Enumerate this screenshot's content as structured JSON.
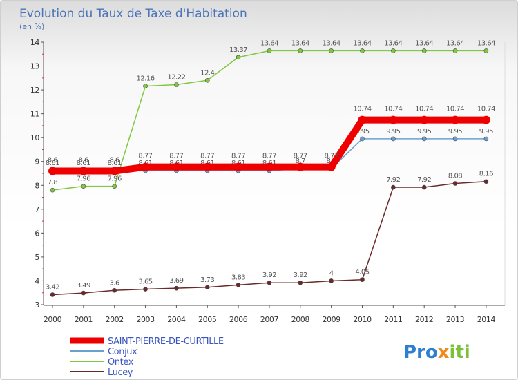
{
  "chart_data": {
    "type": "line",
    "title": "Evolution du Taux de Taxe d'Habitation",
    "subtitle": "(en %)",
    "x": [
      "2000",
      "2001",
      "2002",
      "2003",
      "2004",
      "2005",
      "2006",
      "2007",
      "2008",
      "2009",
      "2010",
      "2011",
      "2012",
      "2013",
      "2014"
    ],
    "ylim": [
      3,
      14
    ],
    "yticks": [
      3,
      4,
      5,
      6,
      7,
      8,
      9,
      10,
      11,
      12,
      13,
      14
    ],
    "grid": false,
    "legend_position": "bottom-left",
    "series": [
      {
        "name": "SAINT-PIERRE-DE-CURTILLE",
        "color": "#ee0000",
        "labels": [
          "8.6",
          "8.6",
          "8.6",
          "8.77",
          "8.77",
          "8.77",
          "8.77",
          "8.77",
          "8.77",
          "8.77",
          "10.74",
          "10.74",
          "10.74",
          "10.74",
          "10.74"
        ],
        "values": [
          8.6,
          8.6,
          8.6,
          8.77,
          8.77,
          8.77,
          8.77,
          8.77,
          8.77,
          8.77,
          10.74,
          10.74,
          10.74,
          10.74,
          10.74
        ]
      },
      {
        "name": "Conjux",
        "color": "#6aa0d0",
        "labels": [
          "8.61",
          "8.61",
          "8.61",
          "8.61",
          "8.61",
          "8.61",
          "8.61",
          "8.61",
          "8.7",
          "8.7",
          "9.95",
          "9.95",
          "9.95",
          "9.95",
          "9.95"
        ],
        "values": [
          8.61,
          8.61,
          8.61,
          8.61,
          8.61,
          8.61,
          8.61,
          8.61,
          8.7,
          8.7,
          9.95,
          9.95,
          9.95,
          9.95,
          9.95
        ]
      },
      {
        "name": "Ontex",
        "color": "#80c840",
        "labels": [
          "7.8",
          "7.96",
          "7.96",
          "12.16",
          "12.22",
          "12.4",
          "13.37",
          "13.64",
          "13.64",
          "13.64",
          "13.64",
          "13.64",
          "13.64",
          "13.64",
          "13.64"
        ],
        "values": [
          7.8,
          7.96,
          7.96,
          12.16,
          12.22,
          12.4,
          13.37,
          13.64,
          13.64,
          13.64,
          13.64,
          13.64,
          13.64,
          13.64,
          13.64
        ]
      },
      {
        "name": "Lucey",
        "color": "#6b2a2a",
        "labels": [
          "3.42",
          "3.49",
          "3.6",
          "3.65",
          "3.69",
          "3.73",
          "3.83",
          "3.92",
          "3.92",
          "4",
          "4.05",
          "7.92",
          "7.92",
          "8.08",
          "8.16"
        ],
        "values": [
          3.42,
          3.49,
          3.6,
          3.65,
          3.69,
          3.73,
          3.83,
          3.92,
          3.92,
          4,
          4.05,
          7.92,
          7.92,
          8.08,
          8.16
        ]
      }
    ]
  },
  "logo": {
    "part1": "Pro",
    "part2": "x",
    "part3": "iti"
  }
}
